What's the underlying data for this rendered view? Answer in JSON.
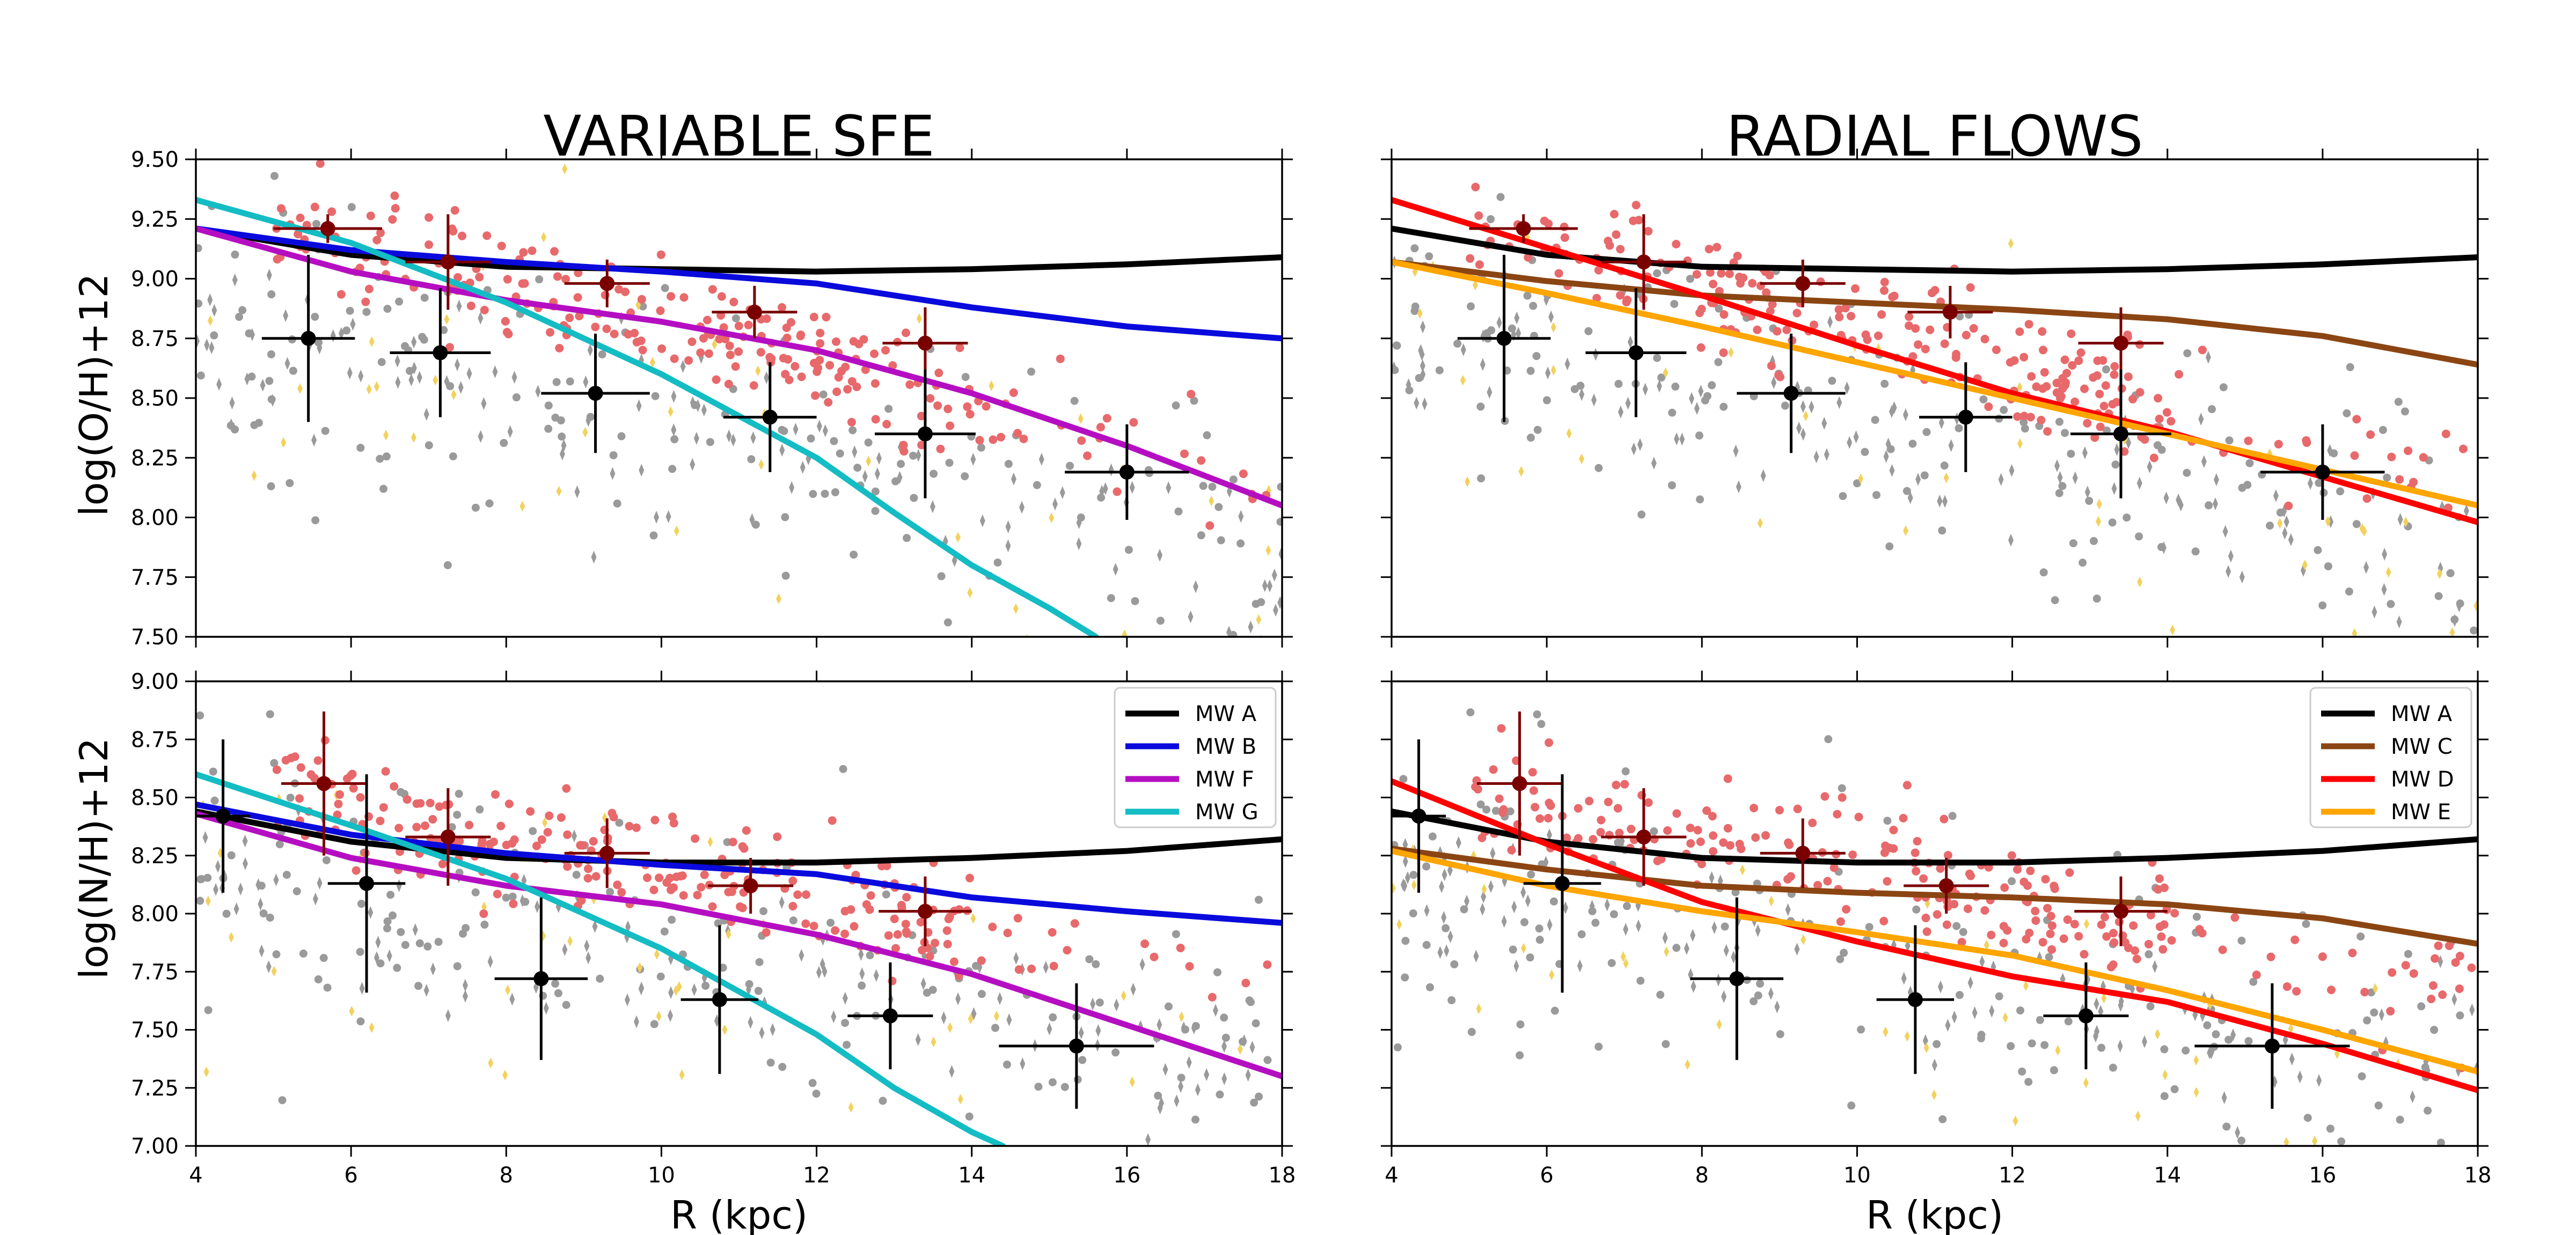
{
  "figure": {
    "col_titles": [
      "VARIABLE SFE",
      "RADIAL FLOWS"
    ],
    "ylabel_top": "log(O/H)+12",
    "ylabel_bottom": "log(N/H)+12",
    "xlabel": "R (kpc)"
  },
  "colors": {
    "MW A": "#000000",
    "MW B": "#0a0adc",
    "MW C": "#8b4513",
    "MW D": "#ff0000",
    "MW E": "#ffa500",
    "MW F": "#b50ec2",
    "MW G": "#14bcc4",
    "obs_red": "#e8696b",
    "obs_grey": "#9a9a9a",
    "obs_yellow": "#f2d25e",
    "bin_dark": "#000000",
    "bin_red": "#7a0000"
  },
  "chart_data": [
    {
      "id": "sfe_oh",
      "type": "line",
      "title": "VARIABLE SFE",
      "xlabel": "",
      "ylabel": "log(O/H)+12",
      "xlim": [
        4,
        18
      ],
      "ylim": [
        7.5,
        9.5
      ],
      "xticks": [
        4,
        6,
        8,
        10,
        12,
        14,
        16,
        18
      ],
      "yticks": [
        "7.50",
        "7.75",
        "8.00",
        "8.25",
        "8.50",
        "8.75",
        "9.00",
        "9.25",
        "9.50"
      ],
      "legend": null,
      "series": [
        {
          "name": "MW A",
          "x": [
            4,
            6,
            8,
            10,
            12,
            14,
            16,
            18
          ],
          "y": [
            9.21,
            9.1,
            9.05,
            9.04,
            9.03,
            9.04,
            9.06,
            9.09
          ]
        },
        {
          "name": "MW B",
          "x": [
            4,
            6,
            8,
            10,
            12,
            14,
            16,
            18
          ],
          "y": [
            9.21,
            9.12,
            9.07,
            9.03,
            8.98,
            8.88,
            8.8,
            8.75
          ]
        },
        {
          "name": "MW F",
          "x": [
            4,
            6,
            8,
            10,
            12,
            14,
            16,
            18
          ],
          "y": [
            9.21,
            9.03,
            8.91,
            8.82,
            8.7,
            8.52,
            8.3,
            8.05
          ]
        },
        {
          "name": "MW G",
          "x": [
            4,
            6,
            8,
            10,
            12,
            13,
            14,
            15,
            15.6
          ],
          "y": [
            9.33,
            9.15,
            8.9,
            8.6,
            8.25,
            8.02,
            7.8,
            7.62,
            7.5
          ]
        }
      ],
      "binned_dark": [
        {
          "x": 5.45,
          "y": 8.75,
          "xerr": 0.6,
          "yerr": 0.35
        },
        {
          "x": 7.15,
          "y": 8.69,
          "xerr": 0.65,
          "yerr": 0.27
        },
        {
          "x": 9.15,
          "y": 8.52,
          "xerr": 0.7,
          "yerr": 0.25
        },
        {
          "x": 11.4,
          "y": 8.42,
          "xerr": 0.6,
          "yerr": 0.23
        },
        {
          "x": 13.4,
          "y": 8.35,
          "xerr": 0.65,
          "yerr": 0.27
        },
        {
          "x": 16.0,
          "y": 8.19,
          "xerr": 0.8,
          "yerr": 0.2
        }
      ],
      "binned_red": [
        {
          "x": 5.7,
          "y": 9.21,
          "xerr": 0.7,
          "yerr": 0.06
        },
        {
          "x": 7.25,
          "y": 9.07,
          "xerr": 0.55,
          "yerr": 0.2
        },
        {
          "x": 9.3,
          "y": 8.98,
          "xerr": 0.55,
          "yerr": 0.1
        },
        {
          "x": 11.2,
          "y": 8.86,
          "xerr": 0.55,
          "yerr": 0.11
        },
        {
          "x": 13.4,
          "y": 8.73,
          "xerr": 0.55,
          "yerr": 0.15
        }
      ]
    },
    {
      "id": "rf_oh",
      "type": "line",
      "title": "RADIAL FLOWS",
      "xlabel": "",
      "ylabel": "",
      "xlim": [
        4,
        18
      ],
      "ylim": [
        7.5,
        9.5
      ],
      "xticks": [
        4,
        6,
        8,
        10,
        12,
        14,
        16,
        18
      ],
      "yticks": [],
      "legend": null,
      "series": [
        {
          "name": "MW A",
          "x": [
            4,
            6,
            8,
            10,
            12,
            14,
            16,
            18
          ],
          "y": [
            9.21,
            9.1,
            9.05,
            9.04,
            9.03,
            9.04,
            9.06,
            9.09
          ]
        },
        {
          "name": "MW C",
          "x": [
            4,
            6,
            8,
            10,
            12,
            14,
            16,
            18
          ],
          "y": [
            9.07,
            8.99,
            8.93,
            8.9,
            8.87,
            8.83,
            8.76,
            8.64
          ]
        },
        {
          "name": "MW D",
          "x": [
            4,
            6,
            8,
            10,
            12,
            14,
            16,
            18
          ],
          "y": [
            9.33,
            9.13,
            8.93,
            8.72,
            8.52,
            8.36,
            8.17,
            7.98
          ]
        },
        {
          "name": "MW E",
          "x": [
            4,
            6,
            8,
            10,
            12,
            14,
            16,
            18
          ],
          "y": [
            9.07,
            8.94,
            8.8,
            8.65,
            8.5,
            8.35,
            8.2,
            8.05
          ]
        }
      ],
      "binned_dark": [
        {
          "x": 5.45,
          "y": 8.75,
          "xerr": 0.6,
          "yerr": 0.35
        },
        {
          "x": 7.15,
          "y": 8.69,
          "xerr": 0.65,
          "yerr": 0.27
        },
        {
          "x": 9.15,
          "y": 8.52,
          "xerr": 0.7,
          "yerr": 0.25
        },
        {
          "x": 11.4,
          "y": 8.42,
          "xerr": 0.6,
          "yerr": 0.23
        },
        {
          "x": 13.4,
          "y": 8.35,
          "xerr": 0.65,
          "yerr": 0.27
        },
        {
          "x": 16.0,
          "y": 8.19,
          "xerr": 0.8,
          "yerr": 0.2
        }
      ],
      "binned_red": [
        {
          "x": 5.7,
          "y": 9.21,
          "xerr": 0.7,
          "yerr": 0.06
        },
        {
          "x": 7.25,
          "y": 9.07,
          "xerr": 0.55,
          "yerr": 0.2
        },
        {
          "x": 9.3,
          "y": 8.98,
          "xerr": 0.55,
          "yerr": 0.1
        },
        {
          "x": 11.2,
          "y": 8.86,
          "xerr": 0.55,
          "yerr": 0.11
        },
        {
          "x": 13.4,
          "y": 8.73,
          "xerr": 0.55,
          "yerr": 0.15
        }
      ]
    },
    {
      "id": "sfe_nh",
      "type": "line",
      "title": "",
      "xlabel": "R (kpc)",
      "ylabel": "log(N/H)+12",
      "xlim": [
        4,
        18
      ],
      "ylim": [
        7.0,
        9.0
      ],
      "xticks": [
        4,
        6,
        8,
        10,
        12,
        14,
        16,
        18
      ],
      "yticks": [
        "7.00",
        "7.25",
        "7.50",
        "7.75",
        "8.00",
        "8.25",
        "8.50",
        "8.75",
        "9.00"
      ],
      "legend": {
        "position": "upper-right",
        "entries": [
          "MW A",
          "MW B",
          "MW F",
          "MW G"
        ]
      },
      "series": [
        {
          "name": "MW A",
          "x": [
            4,
            6,
            8,
            10,
            12,
            14,
            16,
            18
          ],
          "y": [
            8.44,
            8.31,
            8.24,
            8.22,
            8.22,
            8.24,
            8.27,
            8.32
          ]
        },
        {
          "name": "MW B",
          "x": [
            4,
            6,
            8,
            10,
            12,
            14,
            16,
            18
          ],
          "y": [
            8.47,
            8.34,
            8.26,
            8.21,
            8.17,
            8.07,
            8.01,
            7.96
          ]
        },
        {
          "name": "MW F",
          "x": [
            4,
            6,
            8,
            10,
            12,
            14,
            16,
            18
          ],
          "y": [
            8.43,
            8.24,
            8.12,
            8.04,
            7.91,
            7.74,
            7.52,
            7.3
          ]
        },
        {
          "name": "MW G",
          "x": [
            4,
            6,
            8,
            10,
            12,
            13,
            14,
            14.4
          ],
          "y": [
            8.6,
            8.38,
            8.15,
            7.85,
            7.48,
            7.25,
            7.06,
            7.0
          ]
        }
      ],
      "binned_dark": [
        {
          "x": 4.35,
          "y": 8.42,
          "xerr": 0.35,
          "yerr": 0.33
        },
        {
          "x": 6.2,
          "y": 8.13,
          "xerr": 0.5,
          "yerr": 0.47
        },
        {
          "x": 8.45,
          "y": 7.72,
          "xerr": 0.6,
          "yerr": 0.35
        },
        {
          "x": 10.75,
          "y": 7.63,
          "xerr": 0.5,
          "yerr": 0.32
        },
        {
          "x": 12.95,
          "y": 7.56,
          "xerr": 0.55,
          "yerr": 0.23
        },
        {
          "x": 15.35,
          "y": 7.43,
          "xerr": 1.0,
          "yerr": 0.27
        }
      ],
      "binned_red": [
        {
          "x": 5.65,
          "y": 8.56,
          "xerr": 0.55,
          "yerr": 0.31
        },
        {
          "x": 7.25,
          "y": 8.33,
          "xerr": 0.55,
          "yerr": 0.21
        },
        {
          "x": 9.3,
          "y": 8.26,
          "xerr": 0.55,
          "yerr": 0.15
        },
        {
          "x": 11.15,
          "y": 8.12,
          "xerr": 0.55,
          "yerr": 0.12
        },
        {
          "x": 13.4,
          "y": 8.01,
          "xerr": 0.6,
          "yerr": 0.15
        }
      ]
    },
    {
      "id": "rf_nh",
      "type": "line",
      "title": "",
      "xlabel": "R (kpc)",
      "ylabel": "",
      "xlim": [
        4,
        18
      ],
      "ylim": [
        7.0,
        9.0
      ],
      "xticks": [
        4,
        6,
        8,
        10,
        12,
        14,
        16,
        18
      ],
      "yticks": [],
      "legend": {
        "position": "upper-right",
        "entries": [
          "MW A",
          "MW C",
          "MW D",
          "MW E"
        ]
      },
      "series": [
        {
          "name": "MW A",
          "x": [
            4,
            6,
            8,
            10,
            12,
            14,
            16,
            18
          ],
          "y": [
            8.44,
            8.31,
            8.24,
            8.22,
            8.22,
            8.24,
            8.27,
            8.32
          ]
        },
        {
          "name": "MW C",
          "x": [
            4,
            6,
            8,
            10,
            12,
            14,
            16,
            18
          ],
          "y": [
            8.28,
            8.19,
            8.12,
            8.09,
            8.07,
            8.04,
            7.98,
            7.87
          ]
        },
        {
          "name": "MW D",
          "x": [
            4,
            6,
            8,
            10,
            12,
            14,
            16,
            18
          ],
          "y": [
            8.57,
            8.3,
            8.05,
            7.88,
            7.73,
            7.62,
            7.44,
            7.24
          ]
        },
        {
          "name": "MW E",
          "x": [
            4,
            6,
            8,
            10,
            12,
            14,
            16,
            18
          ],
          "y": [
            8.27,
            8.12,
            8.01,
            7.92,
            7.82,
            7.67,
            7.5,
            7.32
          ]
        }
      ],
      "binned_dark": [
        {
          "x": 4.35,
          "y": 8.42,
          "xerr": 0.35,
          "yerr": 0.33
        },
        {
          "x": 6.2,
          "y": 8.13,
          "xerr": 0.5,
          "yerr": 0.47
        },
        {
          "x": 8.45,
          "y": 7.72,
          "xerr": 0.6,
          "yerr": 0.35
        },
        {
          "x": 10.75,
          "y": 7.63,
          "xerr": 0.5,
          "yerr": 0.32
        },
        {
          "x": 12.95,
          "y": 7.56,
          "xerr": 0.55,
          "yerr": 0.23
        },
        {
          "x": 15.35,
          "y": 7.43,
          "xerr": 1.0,
          "yerr": 0.27
        }
      ],
      "binned_red": [
        {
          "x": 5.65,
          "y": 8.56,
          "xerr": 0.55,
          "yerr": 0.31
        },
        {
          "x": 7.25,
          "y": 8.33,
          "xerr": 0.55,
          "yerr": 0.21
        },
        {
          "x": 9.3,
          "y": 8.26,
          "xerr": 0.55,
          "yerr": 0.15
        },
        {
          "x": 11.15,
          "y": 8.12,
          "xerr": 0.55,
          "yerr": 0.12
        },
        {
          "x": 13.4,
          "y": 8.01,
          "xerr": 0.6,
          "yerr": 0.15
        }
      ]
    }
  ]
}
